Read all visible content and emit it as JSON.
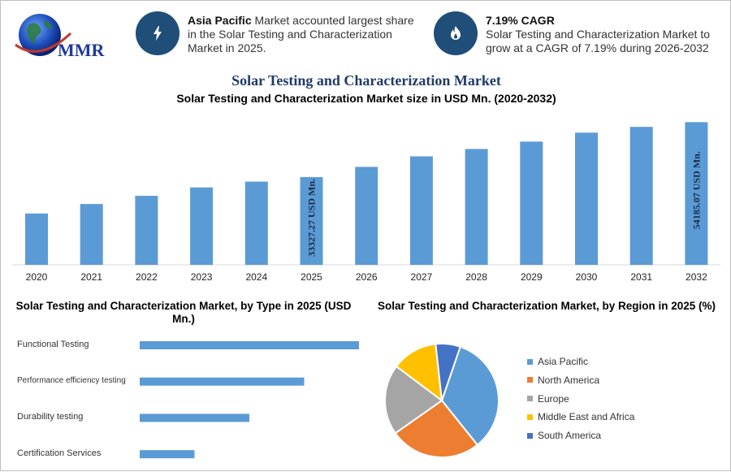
{
  "logo": {
    "text": "MMR"
  },
  "info": [
    {
      "bold": "Asia Pacific",
      "text": " Market accounted largest share in the Solar Testing and Characterization Market in 2025.",
      "icon": "lightning-icon"
    },
    {
      "bold": "7.19% CAGR",
      "text": "Solar Testing and Characterization Market to grow at a CAGR of 7.19% during 2026-2032",
      "icon": "flame-icon"
    }
  ],
  "titles": {
    "main": "Solar Testing and Characterization Market",
    "sub": "Solar Testing and Characterization Market size in USD Mn. (2020-2032)",
    "by_type": "Solar Testing and Characterization Market, by Type in 2025 (USD Mn.)",
    "by_region": "Solar Testing and Characterization Market, by Region in 2025 (%)"
  },
  "colors": {
    "bar": "#5b9bd5",
    "navy": "#1f4e79"
  },
  "chart_data": [
    {
      "type": "bar",
      "categories": [
        "2020",
        "2021",
        "2022",
        "2023",
        "2024",
        "2025",
        "2026",
        "2027",
        "2028",
        "2029",
        "2030",
        "2031",
        "2032"
      ],
      "values": [
        19500,
        23100,
        26200,
        29400,
        31600,
        33327.27,
        37200,
        41200,
        44000,
        46800,
        50200,
        52400,
        54185.07
      ],
      "data_labels": {
        "2025": "33327.27 USD Mn.",
        "2032": "54185.07 USD Mn."
      },
      "ylim": [
        0,
        58000
      ]
    },
    {
      "type": "bar",
      "orientation": "horizontal",
      "categories": [
        "Functional Testing",
        "Performance efficiency testing",
        "Durability testing",
        "Certification Services"
      ],
      "values": [
        100,
        75,
        50,
        25
      ],
      "xlim": [
        0,
        100
      ]
    },
    {
      "type": "pie",
      "categories": [
        "Asia Pacific",
        "North America",
        "Europe",
        "Middle East and Africa",
        "South America"
      ],
      "values": [
        34,
        26,
        20,
        13,
        7
      ],
      "colors": [
        "#5b9bd5",
        "#ed7d31",
        "#a5a5a5",
        "#ffc000",
        "#4472c4"
      ]
    }
  ]
}
